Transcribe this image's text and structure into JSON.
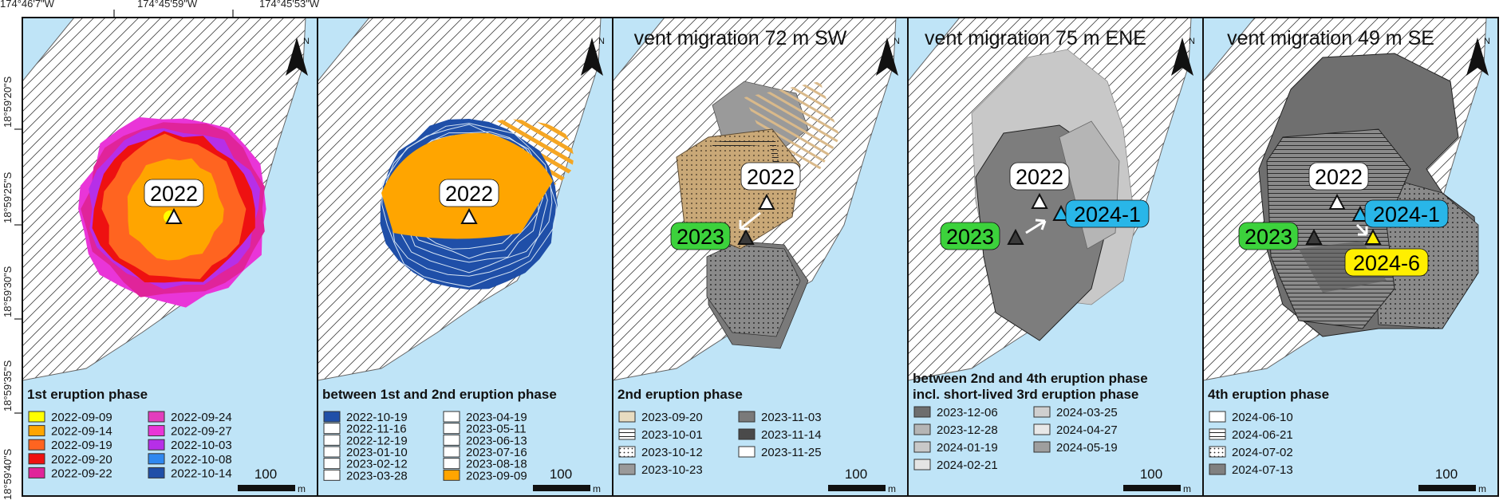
{
  "coords": {
    "top": [
      "174°46'7\"W",
      "174°45'59\"W",
      "174°45'53\"W"
    ],
    "left": [
      "18°59'20\"S",
      "18°59'25\"S",
      "18°59'30\"S",
      "18°59'35\"S",
      "18°59'40\"S"
    ]
  },
  "north_label": "N",
  "scale": {
    "value": "100",
    "unit": "m"
  },
  "panels": [
    {
      "title": "",
      "vent_labels": [
        {
          "text": "2022",
          "color": "#ffffff"
        }
      ],
      "legend_title": "1st eruption phase",
      "legend_subtitle": "",
      "legend": [
        {
          "date": "2022-09-09",
          "color": "#ffff00",
          "pattern": "solid"
        },
        {
          "date": "2022-09-14",
          "color": "#ffa500",
          "pattern": "solid"
        },
        {
          "date": "2022-09-19",
          "color": "#ff6420",
          "pattern": "solid"
        },
        {
          "date": "2022-09-20",
          "color": "#ee1111",
          "pattern": "solid"
        },
        {
          "date": "2022-09-22",
          "color": "#e0249a",
          "pattern": "solid"
        },
        {
          "date": "2022-09-24",
          "color": "#e23dbd",
          "pattern": "solid"
        },
        {
          "date": "2022-09-27",
          "color": "#e935d8",
          "pattern": "solid"
        },
        {
          "date": "2022-10-03",
          "color": "#b62fe8",
          "pattern": "solid"
        },
        {
          "date": "2022-10-08",
          "color": "#2f88f0",
          "pattern": "solid"
        },
        {
          "date": "2022-10-14",
          "color": "#1f4fa8",
          "pattern": "solid"
        }
      ]
    },
    {
      "title": "",
      "vent_labels": [
        {
          "text": "2022",
          "color": "#ffffff"
        }
      ],
      "legend_title": "between 1st and 2nd eruption phase",
      "legend_subtitle": "",
      "legend": [
        {
          "date": "2022-10-19",
          "color": "#1f4fa8",
          "pattern": "solid"
        },
        {
          "date": "2022-11-16",
          "color": "#ffffff",
          "pattern": "outline"
        },
        {
          "date": "2022-12-19",
          "color": "#ffffff",
          "pattern": "outline"
        },
        {
          "date": "2023-01-10",
          "color": "#ffffff",
          "pattern": "outline"
        },
        {
          "date": "2023-02-12",
          "color": "#ffffff",
          "pattern": "outline"
        },
        {
          "date": "2023-03-28",
          "color": "#ffffff",
          "pattern": "outline"
        },
        {
          "date": "2023-04-19",
          "color": "#ffffff",
          "pattern": "outline"
        },
        {
          "date": "2023-05-11",
          "color": "#ffffff",
          "pattern": "outline"
        },
        {
          "date": "2023-06-13",
          "color": "#ffffff",
          "pattern": "outline"
        },
        {
          "date": "2023-07-16",
          "color": "#ffffff",
          "pattern": "outline"
        },
        {
          "date": "2023-08-18",
          "color": "#ffffff",
          "pattern": "outline"
        },
        {
          "date": "2023-09-09",
          "color": "#ffa500",
          "pattern": "solid"
        }
      ]
    },
    {
      "title": "vent migration 72 m SW",
      "vent_labels": [
        {
          "text": "2022",
          "color": "#ffffff"
        },
        {
          "text": "2023",
          "color": "#3cd23c"
        }
      ],
      "legend_title": "2nd eruption phase",
      "legend_subtitle": "",
      "legend": [
        {
          "date": "2023-09-20",
          "color": "#e8dcc0",
          "pattern": "solid"
        },
        {
          "date": "2023-10-01",
          "color": "#ffffff",
          "pattern": "hlines"
        },
        {
          "date": "2023-10-12",
          "color": "#ffffff",
          "pattern": "dots"
        },
        {
          "date": "2023-10-23",
          "color": "#9a9a9a",
          "pattern": "solid"
        },
        {
          "date": "2023-11-03",
          "color": "#7a7a7a",
          "pattern": "solid"
        },
        {
          "date": "2023-11-14",
          "color": "#4a4a4a",
          "pattern": "solid"
        },
        {
          "date": "2023-11-25",
          "color": "#ffffff",
          "pattern": "outline"
        }
      ]
    },
    {
      "title": "vent migration 75 m ENE",
      "vent_labels": [
        {
          "text": "2022",
          "color": "#ffffff"
        },
        {
          "text": "2023",
          "color": "#3cd23c"
        },
        {
          "text": "2024-1",
          "color": "#29b6e8"
        }
      ],
      "legend_title": "between 2nd and 4th eruption phase",
      "legend_subtitle": "incl. short-lived 3rd eruption phase",
      "legend": [
        {
          "date": "2023-12-06",
          "color": "#6e6e6e",
          "pattern": "solid"
        },
        {
          "date": "2023-12-28",
          "color": "#b5b5b5",
          "pattern": "solid"
        },
        {
          "date": "2024-01-19",
          "color": "#c8c8c8",
          "pattern": "solid"
        },
        {
          "date": "2024-02-21",
          "color": "#e4e4e4",
          "pattern": "solid"
        },
        {
          "date": "2024-03-25",
          "color": "#cfcfcf",
          "pattern": "solid"
        },
        {
          "date": "2024-04-27",
          "color": "#e8e8e8",
          "pattern": "solid"
        },
        {
          "date": "2024-05-19",
          "color": "#9e9e9e",
          "pattern": "solid"
        }
      ]
    },
    {
      "title": "vent migration 49 m SE",
      "vent_labels": [
        {
          "text": "2022",
          "color": "#ffffff"
        },
        {
          "text": "2023",
          "color": "#3cd23c"
        },
        {
          "text": "2024-1",
          "color": "#29b6e8"
        },
        {
          "text": "2024-6",
          "color": "#ffef00"
        }
      ],
      "legend_title": "4th eruption phase",
      "legend_subtitle": "",
      "legend": [
        {
          "date": "2024-06-10",
          "color": "#ffffff",
          "pattern": "outline"
        },
        {
          "date": "2024-06-21",
          "color": "#ffffff",
          "pattern": "hlines"
        },
        {
          "date": "2024-07-02",
          "color": "#ffffff",
          "pattern": "dots"
        },
        {
          "date": "2024-07-13",
          "color": "#808080",
          "pattern": "solid"
        }
      ]
    }
  ],
  "colors": {
    "water": "#bfe4f7",
    "triangle_2022": "#ffffff",
    "triangle_2023": "#3a3a3a",
    "triangle_2024_1": "#29b6e8",
    "triangle_2024_6": "#ffef00"
  }
}
